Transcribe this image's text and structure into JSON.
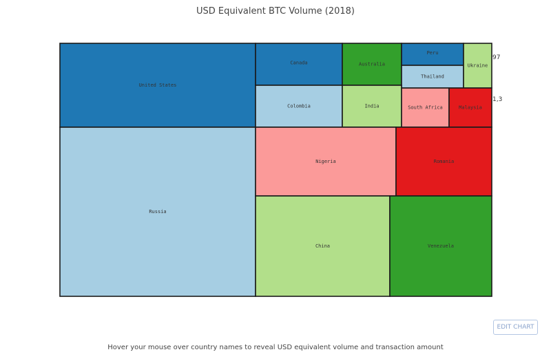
{
  "page": {
    "title": "USD Equivalent BTC Volume (2018)",
    "footer": "Hover your mouse over country names to reveal USD equivalent volume and transaction amount",
    "edit_button": "EDIT CHART"
  },
  "chart_data": {
    "type": "treemap",
    "title": "USD Equivalent BTC Volume (2018)",
    "colors": {
      "dark_blue": "#1f78b4",
      "light_blue": "#a6cee3",
      "dark_green": "#33a02c",
      "light_green": "#b2df8a",
      "pink": "#fb9a99",
      "red": "#e31a1c"
    },
    "cells": [
      {
        "name": "United States",
        "color": "dark_blue"
      },
      {
        "name": "Russia",
        "color": "light_blue"
      },
      {
        "name": "Canada",
        "color": "dark_blue"
      },
      {
        "name": "Australia",
        "color": "dark_green"
      },
      {
        "name": "Peru",
        "color": "dark_blue"
      },
      {
        "name": "Thailand",
        "color": "light_blue"
      },
      {
        "name": "Ukraine",
        "color": "light_green"
      },
      {
        "name": "Colombia",
        "color": "light_blue"
      },
      {
        "name": "India",
        "color": "light_green"
      },
      {
        "name": "South Africa",
        "color": "pink"
      },
      {
        "name": "Malaysia",
        "color": "red"
      },
      {
        "name": "Nigeria",
        "color": "pink"
      },
      {
        "name": "Romania",
        "color": "red"
      },
      {
        "name": "China",
        "color": "light_green"
      },
      {
        "name": "Venezuela",
        "color": "dark_green"
      }
    ],
    "edge_labels": [
      "97",
      "1,3"
    ]
  }
}
